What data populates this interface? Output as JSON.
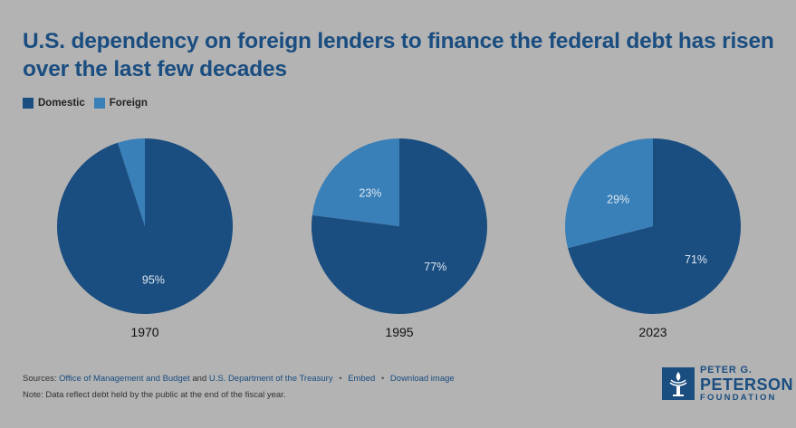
{
  "title": "U.S. dependency on foreign lenders to finance the federal debt has risen over the last few decades",
  "legend": [
    {
      "label": "Domestic",
      "color": "#1a4d80"
    },
    {
      "label": "Foreign",
      "color": "#3a80b8"
    }
  ],
  "colors": {
    "domestic": "#1a4d80",
    "foreign": "#3a80b8",
    "label_text": "#dce6f0",
    "year_text": "#111111"
  },
  "chart_data": [
    {
      "type": "pie",
      "title": "1970",
      "slices": [
        {
          "name": "Domestic",
          "value": 95,
          "label": "95%"
        },
        {
          "name": "Foreign",
          "value": 5,
          "label": ""
        }
      ]
    },
    {
      "type": "pie",
      "title": "1995",
      "slices": [
        {
          "name": "Domestic",
          "value": 77,
          "label": "77%"
        },
        {
          "name": "Foreign",
          "value": 23,
          "label": "23%"
        }
      ]
    },
    {
      "type": "pie",
      "title": "2023",
      "slices": [
        {
          "name": "Domestic",
          "value": 71,
          "label": "71%"
        },
        {
          "name": "Foreign",
          "value": 29,
          "label": "29%"
        }
      ]
    }
  ],
  "footer": {
    "sources_prefix": "Sources:",
    "source1": "Office of Management and Budget",
    "and": "and",
    "source2": "U.S. Department of the Treasury",
    "bullet": "•",
    "embed": "Embed",
    "download": "Download image",
    "note": "Note: Data reflect debt held by the public at the end of the fiscal year."
  },
  "logo": {
    "line1": "PETER G.",
    "line2": "PETERSON",
    "line3": "FOUNDATION"
  }
}
